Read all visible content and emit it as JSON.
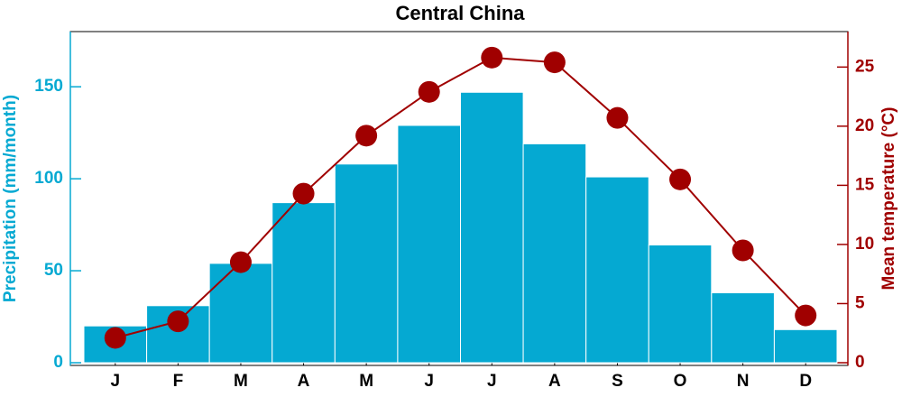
{
  "chart_data": {
    "type": "bar",
    "title": "Central China",
    "categories": [
      "J",
      "F",
      "M",
      "A",
      "M",
      "J",
      "J",
      "A",
      "S",
      "O",
      "N",
      "D"
    ],
    "ylabel": "Precipitation (mm/month)",
    "y2label": "Mean temperature (°C)",
    "ylim": [
      0,
      180
    ],
    "yticks": [
      0,
      50,
      100,
      150
    ],
    "y2lim": [
      0,
      28
    ],
    "y2ticks": [
      0,
      5,
      10,
      15,
      20,
      25
    ],
    "series": [
      {
        "name": "Precipitation",
        "type": "bar",
        "color": "#05a9d2",
        "values": [
          20,
          31,
          54,
          87,
          108,
          129,
          147,
          119,
          101,
          64,
          38,
          18
        ]
      },
      {
        "name": "Mean temperature",
        "type": "line",
        "axis": "y2",
        "color": "#a00000",
        "values": [
          2.1,
          3.5,
          8.5,
          14.3,
          19.2,
          22.9,
          25.8,
          25.4,
          20.7,
          15.5,
          9.5,
          4.0
        ]
      }
    ]
  }
}
